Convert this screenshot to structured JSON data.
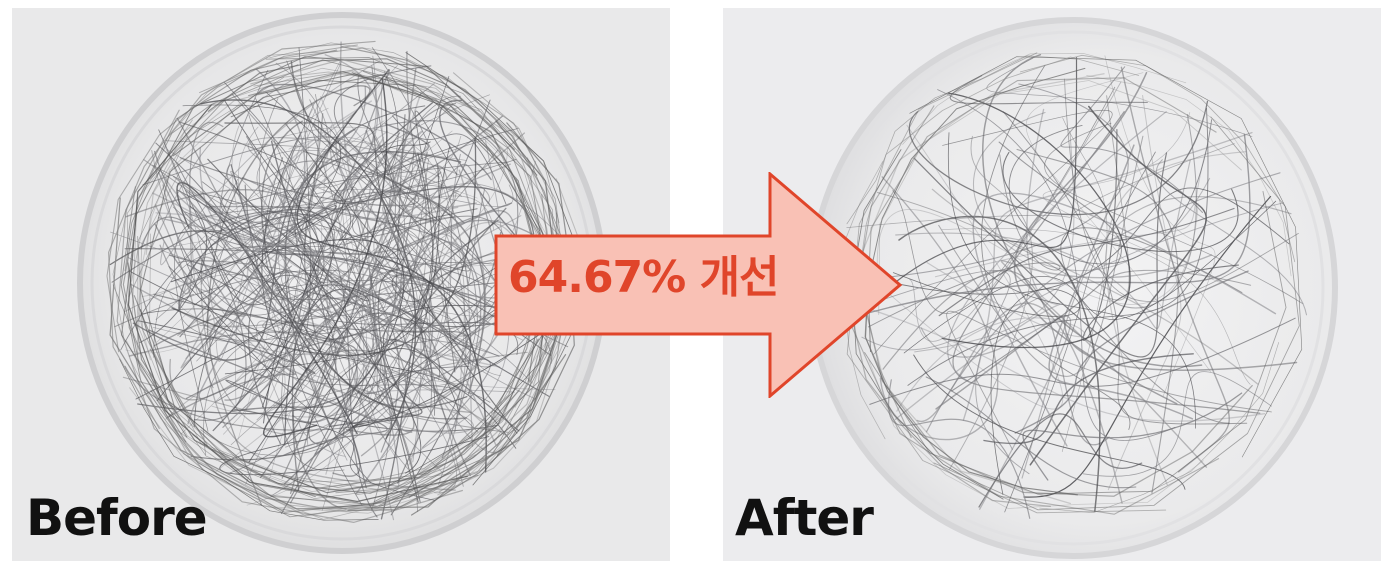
{
  "before": {
    "label": "Before",
    "background_color": "#e9e9ea"
  },
  "after": {
    "label": "After",
    "background_color": "#ececee"
  },
  "arrow": {
    "label": "64.67% 개선",
    "fill_color": "#f9c1b5",
    "stroke_color": "#e0452a",
    "text_color": "#e0452a"
  }
}
